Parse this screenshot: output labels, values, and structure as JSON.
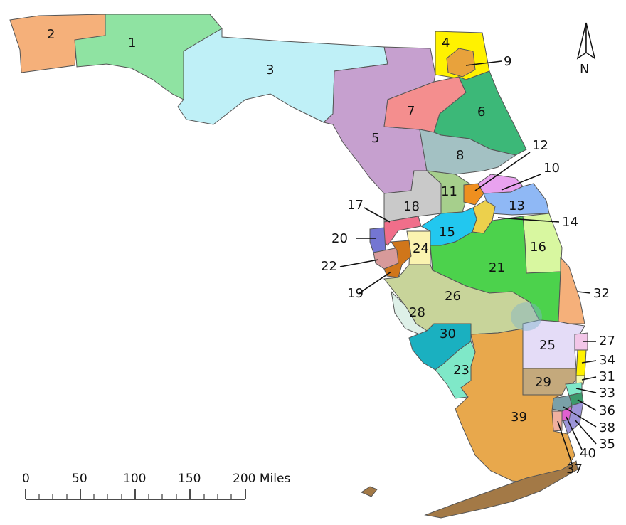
{
  "map": {
    "districts": [
      {
        "id": "1",
        "label": "1",
        "color": "#8fe3a2"
      },
      {
        "id": "2",
        "label": "2",
        "color": "#f5b07a"
      },
      {
        "id": "3",
        "label": "3",
        "color": "#bff0f7"
      },
      {
        "id": "4",
        "label": "4",
        "color": "#fff200"
      },
      {
        "id": "5",
        "label": "5",
        "color": "#c6a0cf"
      },
      {
        "id": "6",
        "label": "6",
        "color": "#3cb878"
      },
      {
        "id": "7",
        "label": "7",
        "color": "#f48e8e"
      },
      {
        "id": "8",
        "label": "8",
        "color": "#a3c1c3"
      },
      {
        "id": "9",
        "label": "9",
        "color": "#e8a23c"
      },
      {
        "id": "10",
        "label": "10",
        "color": "#e9a2ef"
      },
      {
        "id": "11",
        "label": "11",
        "color": "#a6cf8c"
      },
      {
        "id": "12",
        "label": "12",
        "color": "#ef8f1f"
      },
      {
        "id": "13",
        "label": "13",
        "color": "#8fb8f5"
      },
      {
        "id": "14",
        "label": "14",
        "color": "#ecd04c"
      },
      {
        "id": "15",
        "label": "15",
        "color": "#22c7ef"
      },
      {
        "id": "16",
        "label": "16",
        "color": "#d8f7a0"
      },
      {
        "id": "17",
        "label": "17",
        "color": "#f06e8a"
      },
      {
        "id": "18",
        "label": "18",
        "color": "#c9c9c9"
      },
      {
        "id": "19",
        "label": "19",
        "color": "#d0761a"
      },
      {
        "id": "20",
        "label": "20",
        "color": "#7476d2"
      },
      {
        "id": "21",
        "label": "21",
        "color": "#4cd24c"
      },
      {
        "id": "22",
        "label": "22",
        "color": "#d79a9a"
      },
      {
        "id": "23",
        "label": "23",
        "color": "#7fe8c8"
      },
      {
        "id": "24",
        "label": "24",
        "color": "#fbf3b0"
      },
      {
        "id": "25",
        "label": "25",
        "color": "#e4dcf7"
      },
      {
        "id": "26",
        "label": "26",
        "color": "#c8d49a"
      },
      {
        "id": "27",
        "label": "27",
        "color": "#f2c6e8"
      },
      {
        "id": "28",
        "label": "28",
        "color": "#def0e8"
      },
      {
        "id": "29",
        "label": "29",
        "color": "#c4a97c"
      },
      {
        "id": "30",
        "label": "30",
        "color": "#1ab0c0"
      },
      {
        "id": "31",
        "label": "31",
        "color": "#f5f7b0"
      },
      {
        "id": "32",
        "label": "32",
        "color": "#f5b07a"
      },
      {
        "id": "33",
        "label": "33",
        "color": "#7fe8c8"
      },
      {
        "id": "34",
        "label": "34",
        "color": "#fff200"
      },
      {
        "id": "35",
        "label": "35",
        "color": "#9c94d8"
      },
      {
        "id": "36",
        "label": "36",
        "color": "#3c9a6c"
      },
      {
        "id": "37",
        "label": "37",
        "color": "#f0b0a0"
      },
      {
        "id": "38",
        "label": "38",
        "color": "#7aa0a8"
      },
      {
        "id": "39",
        "label": "39",
        "color": "#e8a84c"
      },
      {
        "id": "40",
        "label": "40",
        "color": "#e060d0"
      }
    ],
    "keys_color": "#a37946",
    "water_shade": "#7fb3c9"
  },
  "north_arrow": {
    "label": "N"
  },
  "scale_bar": {
    "ticks": [
      "0",
      "50",
      "100",
      "150"
    ],
    "last_tick": "200 Miles"
  }
}
